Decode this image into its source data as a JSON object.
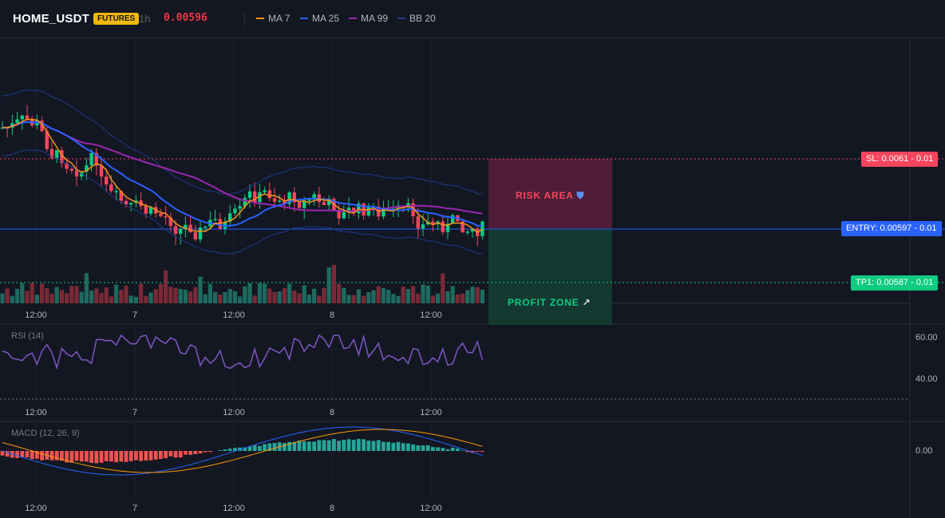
{
  "header": {
    "symbol": "HOME_USDT",
    "badge": "FUTURES",
    "timeframe": "1h",
    "price": "0.00596"
  },
  "legend": [
    {
      "label": "MA 7",
      "color": "#f7931a"
    },
    {
      "label": "MA 25",
      "color": "#2962ff"
    },
    {
      "label": "MA 99",
      "color": "#9c27b0"
    },
    {
      "label": "BB 20",
      "color": "#1e3a8a"
    }
  ],
  "levels": {
    "sl": "SL: 0.0061 - 0.01",
    "entry": "ENTRY: 0.00597 - 0.01",
    "tp": "TP1: 0.00587 - 0.01"
  },
  "zones": {
    "risk": "RISK AREA",
    "profit": "PROFIT ZONE"
  },
  "x_ticks": [
    "12:00",
    "7",
    "12:00",
    "8",
    "12:00"
  ],
  "rsi": {
    "title": "RSI (14)",
    "axis": [
      "60.00",
      "40.00"
    ]
  },
  "macd": {
    "title": "MACD (12, 26, 9)",
    "axis": [
      "0.00"
    ]
  },
  "colors": {
    "up": "#26a69a",
    "up_bright": "#0ecb81",
    "down": "#f6465d",
    "sl": "#f6465d",
    "entry": "#2962ff",
    "tp": "#0ecb81"
  }
}
